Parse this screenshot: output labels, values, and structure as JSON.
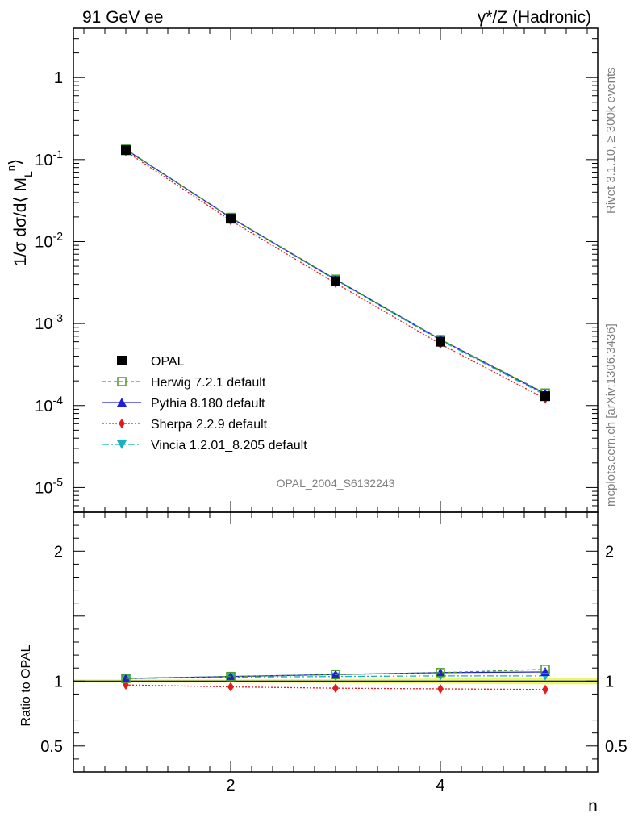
{
  "header": {
    "left_title": "91 GeV ee",
    "right_title": "γ*/Z (Hadronic)"
  },
  "side_labels": {
    "rivet": "Rivet 3.1.10, ≥ 300k events",
    "mcplots": "mcplots.cern.ch [arXiv:1306.3436]"
  },
  "watermark": "OPAL_2004_S6132243",
  "chart_data": {
    "type": "line",
    "title": "",
    "xlabel": "n",
    "ylabel": "1/σ dσ/d⟨ M_L^n ⟩",
    "ylabel_parts": {
      "main": "1/σ dσ/d⟨ M",
      "sub": "L",
      "sup": "n",
      "close": "⟩"
    },
    "ratio_ylabel": "Ratio to OPAL",
    "xlim": [
      0.5,
      5.5
    ],
    "ylim": [
      5e-06,
      4
    ],
    "yscale": "log",
    "ratio_ylim": [
      0.3,
      2.3
    ],
    "x": [
      1,
      2,
      3,
      4,
      5
    ],
    "x_ticks": [
      "2",
      "4"
    ],
    "y_ticks": [
      {
        "base": "10",
        "exp": "-5",
        "value": 1e-05
      },
      {
        "base": "10",
        "exp": "-4",
        "value": 0.0001
      },
      {
        "base": "10",
        "exp": "-3",
        "value": 0.001
      },
      {
        "base": "10",
        "exp": "-2",
        "value": 0.01
      },
      {
        "base": "10",
        "exp": "-1",
        "value": 0.1
      },
      {
        "base": "1",
        "exp": "",
        "value": 1
      }
    ],
    "ratio_y_ticks": [
      "0.5",
      "1",
      "2"
    ],
    "reference": {
      "name": "OPAL",
      "values": [
        0.13,
        0.019,
        0.0033,
        0.0006,
        0.00013
      ],
      "band_color": "#e8f55a"
    },
    "series": [
      {
        "name": "OPAL",
        "legend": "OPAL",
        "color": "#000000",
        "marker": "square-filled",
        "dash": "",
        "values": [
          0.13,
          0.019,
          0.0033,
          0.0006,
          0.00013
        ],
        "ratio": [
          1.0,
          1.0,
          1.0,
          1.0,
          1.0
        ]
      },
      {
        "name": "Herwig",
        "legend": "Herwig 7.2.1 default",
        "color": "#4a9a2a",
        "marker": "square-open",
        "dash": "4,3",
        "values": [
          0.134,
          0.0197,
          0.00347,
          0.000637,
          0.000142
        ],
        "ratio": [
          1.02,
          1.035,
          1.05,
          1.065,
          1.09
        ]
      },
      {
        "name": "Pythia",
        "legend": "Pythia 8.180 default",
        "color": "#1f1fd6",
        "marker": "triangle-up",
        "dash": "",
        "values": [
          0.1326,
          0.0196,
          0.00345,
          0.00064,
          0.000139
        ],
        "ratio": [
          1.02,
          1.035,
          1.05,
          1.065,
          1.07
        ]
      },
      {
        "name": "Sherpa",
        "legend": "Sherpa 2.2.9 default",
        "color": "#e41a1c",
        "marker": "diamond",
        "dash": "2,2",
        "values": [
          0.126,
          0.0181,
          0.00311,
          0.000563,
          0.000121
        ],
        "ratio": [
          0.97,
          0.955,
          0.945,
          0.94,
          0.935
        ]
      },
      {
        "name": "Vincia",
        "legend": "Vincia 1.2.01_8.205 default",
        "color": "#17b0c6",
        "marker": "triangle-down",
        "dash": "8,3,2,3",
        "values": [
          0.1326,
          0.0196,
          0.0034,
          0.000623,
          0.000134
        ],
        "ratio": [
          1.02,
          1.03,
          1.035,
          1.04,
          1.04
        ]
      }
    ]
  }
}
